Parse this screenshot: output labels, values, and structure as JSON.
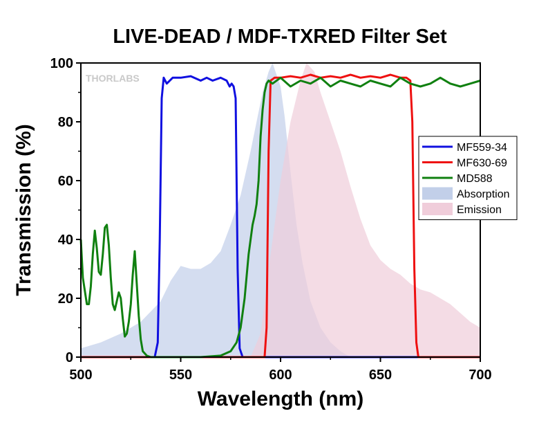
{
  "chart_data": {
    "type": "line",
    "title": "LIVE-DEAD / MDF-TXRED Filter Set",
    "xlabel": "Wavelength (nm)",
    "ylabel": "Transmission (%)",
    "xlim": [
      500,
      700
    ],
    "ylim": [
      0,
      100
    ],
    "xticks": [
      500,
      550,
      600,
      650,
      700
    ],
    "yticks": [
      0,
      20,
      40,
      60,
      80,
      100
    ],
    "grid": false,
    "legend_position": "right",
    "watermark": "THORLABS",
    "series": [
      {
        "name": "MF559-34",
        "kind": "line",
        "color": "#1010e0",
        "x": [
          500,
          537,
          538.5,
          539.5,
          540.5,
          541.5,
          543,
          546,
          550,
          555,
          560,
          563,
          566,
          570,
          573,
          574.5,
          575.5,
          576.5,
          577.5,
          578.5,
          579.5,
          581,
          700
        ],
        "y": [
          0,
          0,
          5,
          40,
          88,
          95,
          93,
          95,
          95,
          95.5,
          94,
          95,
          94,
          95,
          94,
          92,
          93,
          92,
          88,
          30,
          3,
          0,
          0
        ]
      },
      {
        "name": "MF630-69",
        "kind": "line",
        "color": "#ee1010",
        "x": [
          500,
          592,
          593,
          594,
          595,
          597,
          600,
          605,
          610,
          615,
          620,
          625,
          630,
          635,
          640,
          645,
          650,
          655,
          660,
          663,
          665,
          666,
          667,
          668,
          669,
          700
        ],
        "y": [
          0,
          0,
          10,
          70,
          94,
          95,
          95,
          95.5,
          95,
          96,
          95,
          95.5,
          95,
          96,
          95,
          95.5,
          95,
          96,
          95,
          95,
          94,
          80,
          30,
          5,
          0,
          0
        ]
      },
      {
        "name": "MD588",
        "kind": "line",
        "color": "#108010",
        "x": [
          500,
          501,
          503,
          504,
          505,
          506,
          507,
          508,
          509,
          510,
          511,
          512,
          513,
          514,
          515,
          516,
          517,
          518,
          519,
          520,
          521,
          522,
          523,
          524,
          525,
          526,
          527,
          528,
          529,
          530,
          531,
          533,
          535,
          540,
          560,
          570,
          575,
          578,
          580,
          582,
          584,
          586,
          587,
          588,
          589,
          590,
          591,
          592,
          593,
          594,
          596,
          600,
          605,
          610,
          615,
          620,
          625,
          630,
          635,
          640,
          645,
          650,
          655,
          660,
          665,
          670,
          675,
          680,
          685,
          690,
          695,
          700
        ],
        "y": [
          40,
          27,
          18,
          18,
          24,
          35,
          43,
          37,
          29,
          28,
          35,
          44,
          45,
          38,
          27,
          18,
          16,
          19,
          22,
          20,
          13,
          7,
          8,
          12,
          18,
          28,
          36,
          25,
          14,
          6,
          2,
          0.5,
          0,
          0,
          0,
          0.5,
          2,
          5,
          10,
          20,
          35,
          45,
          48,
          52,
          60,
          75,
          84,
          90,
          93,
          94,
          93,
          95,
          92,
          94,
          93,
          95,
          92,
          94,
          93,
          92,
          94,
          93,
          92,
          95,
          93,
          92,
          93,
          95,
          93,
          92,
          93,
          94
        ]
      },
      {
        "name": "Absorption",
        "kind": "area",
        "color": "#c2cfe9",
        "x": [
          500,
          510,
          520,
          530,
          540,
          545,
          550,
          555,
          560,
          565,
          570,
          575,
          580,
          585,
          588,
          591,
          594,
          596,
          598,
          600,
          602,
          605,
          608,
          611,
          615,
          620,
          625,
          630,
          635
        ],
        "y": [
          3,
          5,
          8,
          12,
          19,
          26,
          31,
          30,
          30,
          32,
          36,
          45,
          55,
          70,
          80,
          90,
          97,
          100,
          96,
          92,
          82,
          63,
          45,
          32,
          19,
          10,
          5,
          2,
          0
        ]
      },
      {
        "name": "Emission",
        "kind": "area",
        "color": "#f0cdda",
        "x": [
          585,
          590,
          592,
          595,
          600,
          605,
          610,
          613,
          617,
          620,
          625,
          630,
          635,
          640,
          645,
          650,
          655,
          660,
          665,
          670,
          675,
          680,
          685,
          690,
          695,
          700
        ],
        "y": [
          0,
          8,
          18,
          35,
          60,
          80,
          94,
          100,
          97,
          90,
          80,
          70,
          58,
          47,
          38,
          33,
          30,
          28,
          25,
          23,
          22,
          20,
          18,
          15,
          12,
          10
        ]
      }
    ]
  }
}
